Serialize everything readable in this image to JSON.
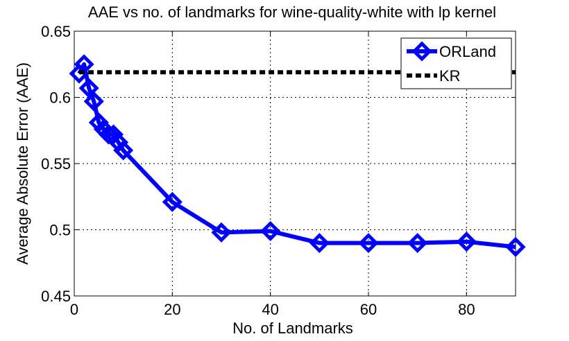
{
  "chart_data": {
    "type": "line",
    "title": "AAE vs no. of landmarks for wine-quality-white with lp kernel",
    "xlabel": "No. of Landmarks",
    "ylabel": "Average Absolute Error (AAE)",
    "xlim": [
      0,
      90
    ],
    "ylim": [
      0.45,
      0.65
    ],
    "xticks": [
      0,
      20,
      40,
      60,
      80
    ],
    "xtick_labels": [
      "0",
      "20",
      "40",
      "60",
      "80"
    ],
    "yticks": [
      0.45,
      0.5,
      0.55,
      0.6,
      0.65
    ],
    "ytick_labels": [
      "0.45",
      "0.5",
      "0.55",
      "0.6",
      "0.65"
    ],
    "grid": true,
    "legend_position": "top-right",
    "series": [
      {
        "name": "ORLand",
        "color": "#0000ff",
        "style": "solid",
        "marker": "diamond",
        "x": [
          1,
          2,
          3,
          4,
          5,
          6,
          7,
          8,
          9,
          10,
          20,
          30,
          40,
          50,
          60,
          70,
          80,
          90
        ],
        "y": [
          0.618,
          0.625,
          0.607,
          0.597,
          0.581,
          0.576,
          0.572,
          0.572,
          0.566,
          0.56,
          0.521,
          0.498,
          0.499,
          0.49,
          0.49,
          0.49,
          0.491,
          0.487
        ]
      },
      {
        "name": "KR",
        "color": "#000000",
        "style": "dashed",
        "marker": "none",
        "x": [
          1,
          90
        ],
        "y": [
          0.619,
          0.619
        ]
      }
    ]
  }
}
